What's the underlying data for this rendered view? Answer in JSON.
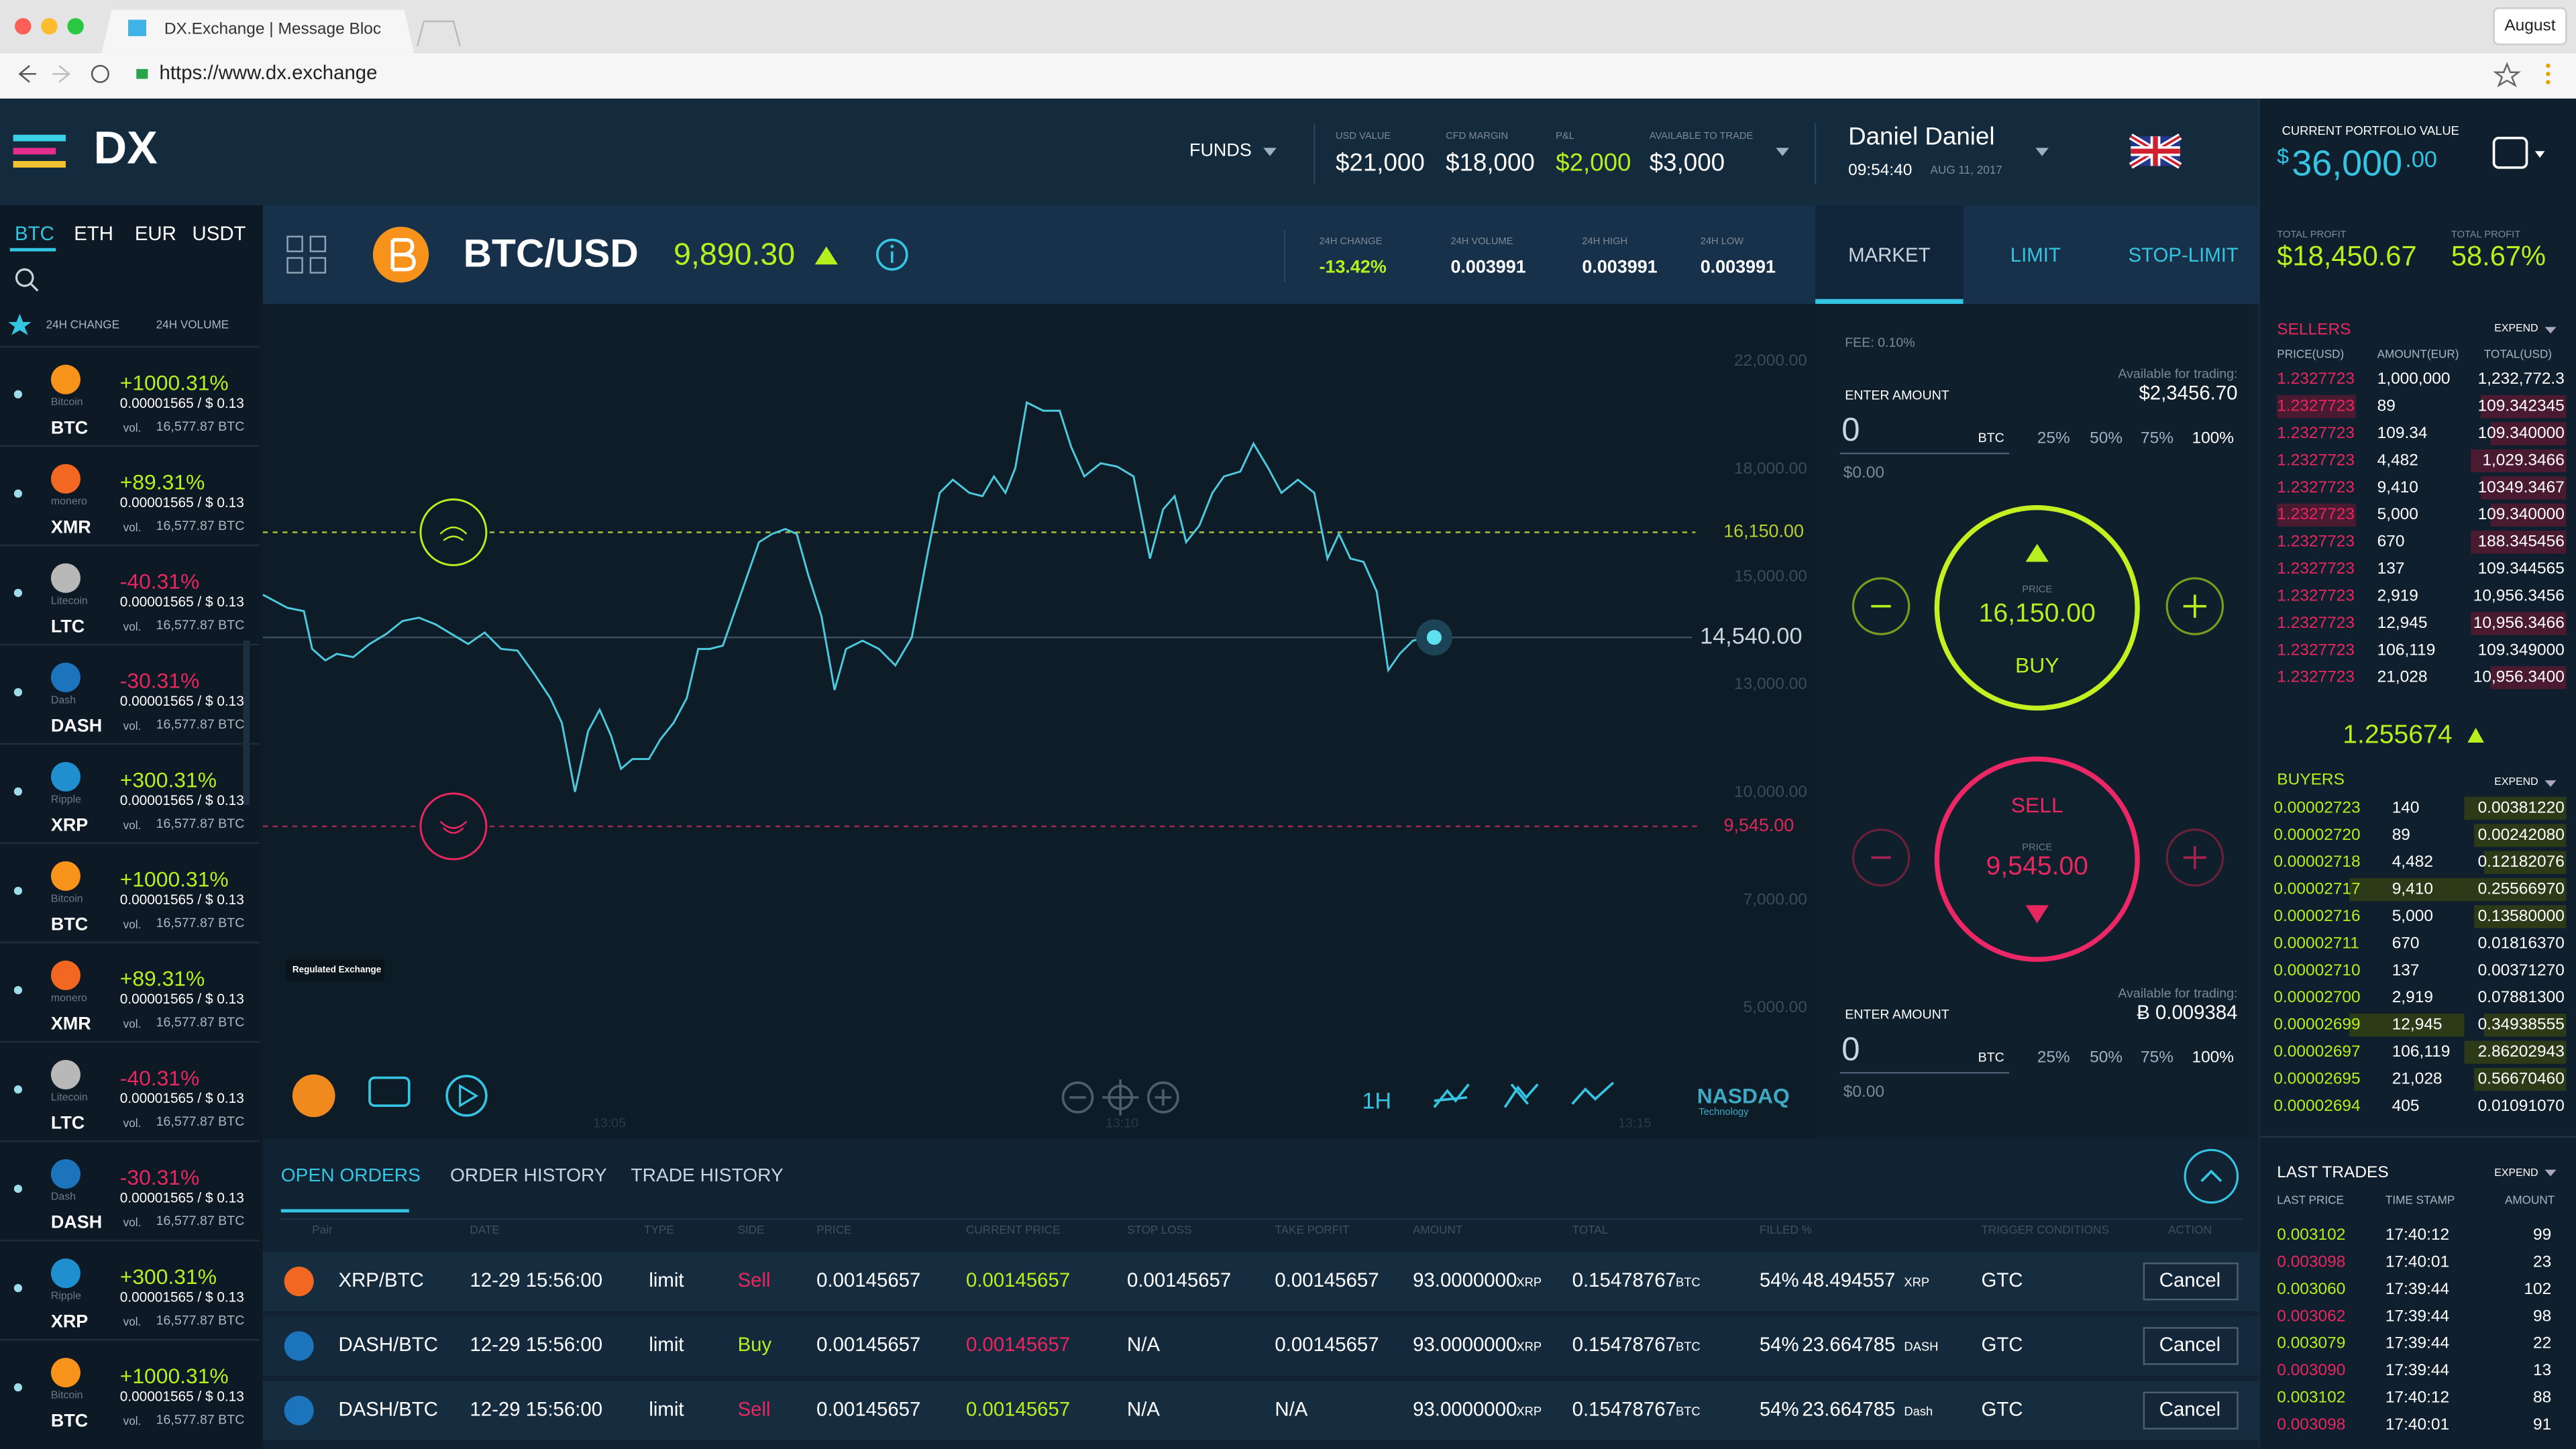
{
  "browser": {
    "tab_title": "DX.Exchange | Message Bloc",
    "url": "https://www.dx.exchange",
    "profile": "August"
  },
  "header": {
    "logo": "DX",
    "funds": "FUNDS",
    "stats": [
      {
        "label": "USD VALUE",
        "value": "$21,000"
      },
      {
        "label": "CFD MARGIN",
        "value": "$18,000"
      },
      {
        "label": "P&L",
        "value": "$2,000"
      },
      {
        "label": "AVAILABLE TO TRADE",
        "value": "$3,000"
      }
    ],
    "user_name": "Daniel Daniel",
    "time": "09:54:40",
    "date": "AUG 11, 2017"
  },
  "portfolio": {
    "label": "CURRENT PORTFOLIO VALUE",
    "currency": "$",
    "whole": "36,000",
    "cents": ".00",
    "profits": [
      {
        "label": "TOTAL PROFIT",
        "value": "$18,450.67"
      },
      {
        "label": "TOTAL PROFIT",
        "value": "58.67%"
      }
    ]
  },
  "sidebar": {
    "tabs": [
      "BTC",
      "ETH",
      "EUR",
      "USDT"
    ],
    "sort": [
      "24H CHANGE",
      "24H VOLUME"
    ],
    "coins": [
      {
        "name": "Bitcoin",
        "symbol": "BTC",
        "change": "+1000.31%",
        "price": "0.00001565 / $ 0.13",
        "vol_label": "vol.",
        "volume": "16,577.87 BTC",
        "icon_color": "#f7931a",
        "change_color": "#b6f01f"
      },
      {
        "name": "monero",
        "symbol": "XMR",
        "change": "+89.31%",
        "price": "0.00001565 / $ 0.13",
        "vol_label": "vol.",
        "volume": "16,577.87 BTC",
        "icon_color": "#f26822",
        "change_color": "#b6f01f"
      },
      {
        "name": "Litecoin",
        "symbol": "LTC",
        "change": "-40.31%",
        "price": "0.00001565 / $ 0.13",
        "vol_label": "vol.",
        "volume": "16,577.87 BTC",
        "icon_color": "#b8b8b8",
        "change_color": "#e8275f"
      },
      {
        "name": "Dash",
        "symbol": "DASH",
        "change": "-30.31%",
        "price": "0.00001565 / $ 0.13",
        "vol_label": "vol.",
        "volume": "16,577.87 BTC",
        "icon_color": "#1c75bc",
        "change_color": "#e8275f"
      },
      {
        "name": "Ripple",
        "symbol": "XRP",
        "change": "+300.31%",
        "price": "0.00001565 / $ 0.13",
        "vol_label": "vol.",
        "volume": "16,577.87 BTC",
        "icon_color": "#1f8fd0",
        "change_color": "#b6f01f"
      },
      {
        "name": "Bitcoin",
        "symbol": "BTC",
        "change": "+1000.31%",
        "price": "0.00001565 / $ 0.13",
        "vol_label": "vol.",
        "volume": "16,577.87 BTC",
        "icon_color": "#f7931a",
        "change_color": "#b6f01f"
      },
      {
        "name": "monero",
        "symbol": "XMR",
        "change": "+89.31%",
        "price": "0.00001565 / $ 0.13",
        "vol_label": "vol.",
        "volume": "16,577.87 BTC",
        "icon_color": "#f26822",
        "change_color": "#b6f01f"
      },
      {
        "name": "Litecoin",
        "symbol": "LTC",
        "change": "-40.31%",
        "price": "0.00001565 / $ 0.13",
        "vol_label": "vol.",
        "volume": "16,577.87 BTC",
        "icon_color": "#b8b8b8",
        "change_color": "#e8275f"
      },
      {
        "name": "Dash",
        "symbol": "DASH",
        "change": "-30.31%",
        "price": "0.00001565 / $ 0.13",
        "vol_label": "vol.",
        "volume": "16,577.87 BTC",
        "icon_color": "#1c75bc",
        "change_color": "#e8275f"
      },
      {
        "name": "Ripple",
        "symbol": "XRP",
        "change": "+300.31%",
        "price": "0.00001565 / $ 0.13",
        "vol_label": "vol.",
        "volume": "16,577.87 BTC",
        "icon_color": "#1f8fd0",
        "change_color": "#b6f01f"
      },
      {
        "name": "Bitcoin",
        "symbol": "BTC",
        "change": "+1000.31%",
        "price": "0.00001565 / $ 0.13",
        "vol_label": "vol.",
        "volume": "16,577.87 BTC",
        "icon_color": "#f7931a",
        "change_color": "#b6f01f"
      }
    ]
  },
  "ticker": {
    "pair": "BTC/USD",
    "price": "9,890.30",
    "stats": [
      {
        "label": "24H CHANGE",
        "value": "-13.42%"
      },
      {
        "label": "24H VOLUME",
        "value": "0.003991"
      },
      {
        "label": "24H HIGH",
        "value": "0.003991"
      },
      {
        "label": "24H LOW",
        "value": "0.003991"
      }
    ]
  },
  "order_tabs": [
    "MARKET",
    "LIMIT",
    "STOP-LIMIT"
  ],
  "chart": {
    "axis_labels": [
      "22,000.00",
      "18,000.00",
      "15,000.00",
      "13,000.00",
      "10,000.00",
      "7,000.00",
      "5,000.00"
    ],
    "buy_line": "16,150.00",
    "current": "14,540.00",
    "sell_line": "9,545.00",
    "times": [
      "13:05",
      "13:10",
      "13:15"
    ],
    "badge": "Regulated Exchange",
    "interval": "1H",
    "brand": "NASDAQ",
    "brand_sub": "Technology"
  },
  "order_form": {
    "fee": "FEE: 0.10%",
    "buy": {
      "available_label": "Available for trading:",
      "available": "$2,3456.70",
      "enter": "ENTER AMOUNT",
      "amount": "0",
      "unit": "BTC",
      "percents": [
        "25%",
        "50%",
        "75%",
        "100%"
      ],
      "total": "$0.00"
    },
    "buy_button": {
      "price_label": "PRICE",
      "price": "16,150.00",
      "action": "BUY"
    },
    "sell_button": {
      "action": "SELL",
      "price_label": "PRICE",
      "price": "9,545.00"
    },
    "sell": {
      "available_label": "Available for trading:",
      "available": "Ƀ 0.009384",
      "enter": "ENTER AMOUNT",
      "amount": "0",
      "unit": "BTC",
      "percents": [
        "25%",
        "50%",
        "75%",
        "100%"
      ],
      "total": "$0.00"
    }
  },
  "sellers": {
    "title": "SELLERS",
    "expand": "EXPEND",
    "headers": [
      "PRICE(USD)",
      "AMOUNT(EUR)",
      "TOTAL(USD)"
    ],
    "rows": [
      [
        "1.2327723",
        "1,000,000",
        "1,232,772.3"
      ],
      [
        "1.2327723",
        "89",
        "109.342345"
      ],
      [
        "1.2327723",
        "109.34",
        "109.340000"
      ],
      [
        "1.2327723",
        "4,482",
        "1,029.3466"
      ],
      [
        "1.2327723",
        "9,410",
        "10349.3467"
      ],
      [
        "1.2327723",
        "5,000",
        "109.340000"
      ],
      [
        "1.2327723",
        "670",
        "188.345456"
      ],
      [
        "1.2327723",
        "137",
        "109.344565"
      ],
      [
        "1.2327723",
        "2,919",
        "10,956.3456"
      ],
      [
        "1.2327723",
        "12,945",
        "10,956.3466"
      ],
      [
        "1.2327723",
        "106,119",
        "109.349000"
      ],
      [
        "1.2327723",
        "21,028",
        "10,956.3400"
      ]
    ]
  },
  "mid_price": "1.255674",
  "buyers": {
    "title": "BUYERS",
    "expand": "EXPEND",
    "rows": [
      [
        "0.00002723",
        "140",
        "0.00381220"
      ],
      [
        "0.00002720",
        "89",
        "0.00242080"
      ],
      [
        "0.00002718",
        "4,482",
        "0.12182076"
      ],
      [
        "0.00002717",
        "9,410",
        "0.25566970"
      ],
      [
        "0.00002716",
        "5,000",
        "0.13580000"
      ],
      [
        "0.00002711",
        "670",
        "0.01816370"
      ],
      [
        "0.00002710",
        "137",
        "0.00371270"
      ],
      [
        "0.00002700",
        "2,919",
        "0.07881300"
      ],
      [
        "0.00002699",
        "12,945",
        "0.34938555"
      ],
      [
        "0.00002697",
        "106,119",
        "2.86202943"
      ],
      [
        "0.00002695",
        "21,028",
        "0.56670460"
      ],
      [
        "0.00002694",
        "405",
        "0.01091070"
      ]
    ]
  },
  "last_trades": {
    "title": "LAST TRADES",
    "expand": "EXPEND",
    "headers": [
      "LAST PRICE",
      "TIME STAMP",
      "AMOUNT"
    ],
    "rows": [
      {
        "price": "0.003102",
        "time": "17:40:12",
        "amount": "99",
        "color": "#b6f01f"
      },
      {
        "price": "0.003098",
        "time": "17:40:01",
        "amount": "23",
        "color": "#e8275f"
      },
      {
        "price": "0.003060",
        "time": "17:39:44",
        "amount": "102",
        "color": "#b6f01f"
      },
      {
        "price": "0.003062",
        "time": "17:39:44",
        "amount": "98",
        "color": "#e8275f"
      },
      {
        "price": "0.003079",
        "time": "17:39:44",
        "amount": "22",
        "color": "#b6f01f"
      },
      {
        "price": "0.003090",
        "time": "17:39:44",
        "amount": "13",
        "color": "#e8275f"
      },
      {
        "price": "0.003102",
        "time": "17:40:12",
        "amount": "88",
        "color": "#b6f01f"
      },
      {
        "price": "0.003098",
        "time": "17:40:01",
        "amount": "91",
        "color": "#e8275f"
      }
    ]
  },
  "orders": {
    "tabs": [
      "OPEN ORDERS",
      "ORDER HISTORY",
      "TRADE HISTORY"
    ],
    "columns": [
      "Pair",
      "DATE",
      "TYPE",
      "SIDE",
      "PRICE",
      "CURRENT PRICE",
      "STOP LOSS",
      "TAKE PORFIT",
      "AMOUNT",
      "TOTAL",
      "FILLED %",
      "TRIGGER CONDITIONS",
      "ACTION"
    ],
    "rows": [
      {
        "pair": "XRP/BTC",
        "date": "12-29 15:56:00",
        "type": "limit",
        "side": "Sell",
        "side_color": "#e8275f",
        "price": "0.00145657",
        "current_price": "0.00145657",
        "current_color": "#b6f01f",
        "stop_loss": "0.00145657",
        "take_profit": "0.00145657",
        "amount": "93.0000000",
        "amount_unit": "XRP",
        "total": "0.15478767",
        "total_unit": "BTC",
        "filled_pct": "54%",
        "filled": "48.494557",
        "filled_unit": "XRP",
        "trigger": "GTC",
        "action": "Cancel",
        "icon_color": "#f26822"
      },
      {
        "pair": "DASH/BTC",
        "date": "12-29 15:56:00",
        "type": "limit",
        "side": "Buy",
        "side_color": "#b6f01f",
        "price": "0.00145657",
        "current_price": "0.00145657",
        "current_color": "#e8275f",
        "stop_loss": "N/A",
        "take_profit": "0.00145657",
        "amount": "93.0000000",
        "amount_unit": "XRP",
        "total": "0.15478767",
        "total_unit": "BTC",
        "filled_pct": "54%",
        "filled": "23.664785",
        "filled_unit": "DASH",
        "trigger": "GTC",
        "action": "Cancel",
        "icon_color": "#1c75bc"
      },
      {
        "pair": "DASH/BTC",
        "date": "12-29 15:56:00",
        "type": "limit",
        "side": "Sell",
        "side_color": "#e8275f",
        "price": "0.00145657",
        "current_price": "0.00145657",
        "current_color": "#b6f01f",
        "stop_loss": "N/A",
        "take_profit": "N/A",
        "amount": "93.0000000",
        "amount_unit": "XRP",
        "total": "0.15478767",
        "total_unit": "BTC",
        "filled_pct": "54%",
        "filled": "23.664785",
        "filled_unit": "Dash",
        "trigger": "GTC",
        "action": "Cancel",
        "icon_color": "#1c75bc"
      }
    ]
  }
}
